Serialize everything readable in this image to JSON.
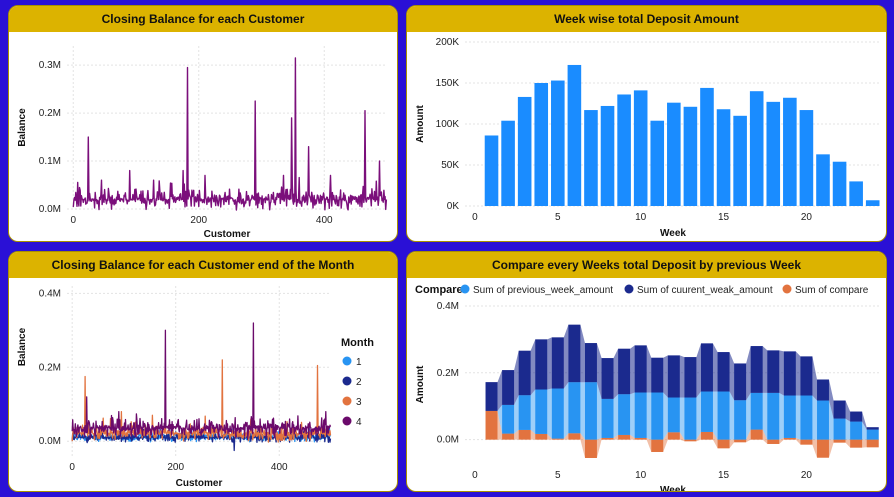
{
  "colors": {
    "background": "#2a10d6",
    "title_bar": "#dcb300",
    "purple": "#7b0f7b",
    "bar_blue": "#1a8cff",
    "light_blue": "#2894f2",
    "dark_navy": "#1b2a8e",
    "orange": "#e2733f",
    "month1": "#2894f2",
    "month2": "#1b2a8e",
    "month3": "#e2733f",
    "month4": "#6b0a6b"
  },
  "charts": {
    "c1": {
      "title": "Closing Balance for each Customer",
      "xlabel": "Customer",
      "ylabel": "Balance",
      "xticks": [
        "0",
        "200",
        "400"
      ],
      "yticks": [
        "0.0M",
        "0.1M",
        "0.2M",
        "0.3M"
      ]
    },
    "c2": {
      "title": "Week wise total Deposit Amount",
      "xlabel": "Week",
      "ylabel": "Amount",
      "xticks": [
        "0",
        "5",
        "10",
        "15",
        "20"
      ],
      "yticks": [
        "0K",
        "50K",
        "100K",
        "150K",
        "200K"
      ]
    },
    "c3": {
      "title": "Closing Balance for each Customer end of the Month",
      "xlabel": "Customer",
      "ylabel": "Balance",
      "xticks": [
        "0",
        "200",
        "400"
      ],
      "yticks": [
        "0.0M",
        "0.2M",
        "0.4M"
      ],
      "legend_title": "Month",
      "legend": [
        "1",
        "2",
        "3",
        "4"
      ]
    },
    "c4": {
      "title": "Compare every Weeks total Deposit by previous Week",
      "xlabel": "Week",
      "ylabel": "Amount",
      "xticks": [
        "0",
        "5",
        "10",
        "15",
        "20"
      ],
      "yticks": [
        "0.0M",
        "0.2M",
        "0.4M"
      ],
      "legend_title": "Compare",
      "legend": [
        "Sum of previous_week_amount",
        "Sum of cuurent_weak_amount",
        "Sum of compare"
      ]
    }
  },
  "chart_data": [
    {
      "type": "line",
      "title": "Closing Balance for each Customer",
      "xlabel": "Customer",
      "ylabel": "Balance",
      "xlim": [
        -10,
        500
      ],
      "ylim": [
        0,
        0.34
      ],
      "unit": "M",
      "baseline": 0.02,
      "noise": 0.025,
      "n_points": 500,
      "peaks": [
        [
          24,
          0.15
        ],
        [
          45,
          0.06
        ],
        [
          90,
          0.08
        ],
        [
          128,
          0.06
        ],
        [
          175,
          0.08
        ],
        [
          182,
          0.295
        ],
        [
          210,
          0.07
        ],
        [
          290,
          0.225
        ],
        [
          335,
          0.07
        ],
        [
          348,
          0.19
        ],
        [
          354,
          0.315
        ],
        [
          375,
          0.13
        ],
        [
          410,
          0.07
        ],
        [
          465,
          0.205
        ],
        [
          488,
          0.1
        ]
      ]
    },
    {
      "type": "bar",
      "title": "Week wise total Deposit Amount",
      "xlabel": "Week",
      "ylabel": "Amount",
      "ylim": [
        0,
        200
      ],
      "unit": "K",
      "categories": [
        1,
        2,
        3,
        4,
        5,
        6,
        7,
        8,
        9,
        10,
        11,
        12,
        13,
        14,
        15,
        16,
        17,
        18,
        19,
        20,
        21,
        22,
        23,
        24
      ],
      "values": [
        86,
        104,
        133,
        150,
        153,
        172,
        117,
        122,
        136,
        141,
        104,
        126,
        121,
        144,
        118,
        110,
        140,
        127,
        132,
        117,
        63,
        54,
        30,
        7
      ]
    },
    {
      "type": "line",
      "title": "Closing Balance for each Customer end of the Month",
      "xlabel": "Customer",
      "ylabel": "Balance",
      "xlim": [
        -10,
        500
      ],
      "ylim": [
        -0.04,
        0.42
      ],
      "unit": "M",
      "n_points": 500,
      "series": [
        {
          "name": "1",
          "baseline": 0.012,
          "noise": 0.015,
          "peaks": []
        },
        {
          "name": "2",
          "baseline": 0.01,
          "noise": 0.015,
          "peaks": [
            [
              313,
              -0.025
            ]
          ]
        },
        {
          "name": "3",
          "baseline": 0.022,
          "noise": 0.025,
          "peaks": [
            [
              25,
              0.175
            ],
            [
              95,
              0.08
            ],
            [
              155,
              0.07
            ],
            [
              290,
              0.22
            ],
            [
              345,
              0.06
            ],
            [
              474,
              0.205
            ]
          ]
        },
        {
          "name": "4",
          "baseline": 0.035,
          "noise": 0.03,
          "peaks": [
            [
              28,
              0.12
            ],
            [
              90,
              0.08
            ],
            [
              180,
              0.3
            ],
            [
              350,
              0.32
            ],
            [
              420,
              0.06
            ],
            [
              490,
              0.08
            ]
          ]
        }
      ]
    },
    {
      "type": "area",
      "title": "Compare every Weeks total Deposit by previous Week",
      "xlabel": "Week",
      "ylabel": "Amount",
      "ylim": [
        -0.07,
        0.4
      ],
      "unit": "M",
      "categories": [
        1,
        2,
        3,
        4,
        5,
        6,
        7,
        8,
        9,
        10,
        11,
        12,
        13,
        14,
        15,
        16,
        17,
        18,
        19,
        20,
        21,
        22,
        23,
        24
      ],
      "series": [
        {
          "name": "Sum of previous_week_amount",
          "values": [
            0,
            0.086,
            0.104,
            0.133,
            0.15,
            0.153,
            0.172,
            0.117,
            0.122,
            0.136,
            0.141,
            0.104,
            0.126,
            0.121,
            0.144,
            0.118,
            0.11,
            0.14,
            0.127,
            0.132,
            0.117,
            0.063,
            0.054,
            0.03
          ]
        },
        {
          "name": "Sum of cuurent_weak_amount",
          "values": [
            0.086,
            0.104,
            0.133,
            0.15,
            0.153,
            0.172,
            0.117,
            0.122,
            0.136,
            0.141,
            0.104,
            0.126,
            0.121,
            0.144,
            0.118,
            0.11,
            0.14,
            0.127,
            0.132,
            0.117,
            0.063,
            0.054,
            0.03,
            0.007
          ]
        },
        {
          "name": "Sum of compare",
          "values": [
            0.086,
            0.018,
            0.029,
            0.017,
            0.003,
            0.019,
            -0.055,
            0.005,
            0.014,
            0.005,
            -0.037,
            0.022,
            -0.005,
            0.023,
            -0.026,
            -0.008,
            0.03,
            -0.013,
            0.005,
            -0.015,
            -0.054,
            -0.009,
            -0.024,
            -0.023
          ]
        }
      ]
    }
  ]
}
